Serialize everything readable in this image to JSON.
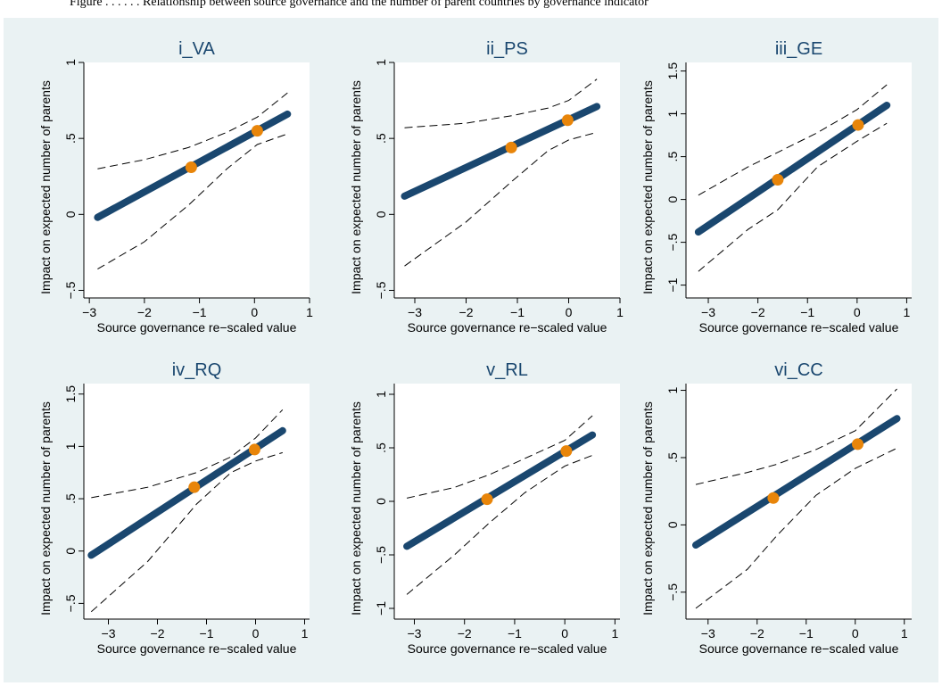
{
  "caption": "Figure  . . . . . .  Relationship between source governance and the number of parent countries by governance indicator",
  "colors": {
    "background": "#eaf2f3",
    "plot_area": "#ffffff",
    "fit_line": "#1a476f",
    "marker": "#e8850a",
    "ci_line": "#000000",
    "title": "#1a476f"
  },
  "chart_data": [
    {
      "type": "line",
      "title": "i_VA",
      "xlabel": "Source governance re−scaled value",
      "ylabel": "Impact on expected number of parents",
      "xlim": [
        -3.1,
        1.0
      ],
      "ylim": [
        -0.55,
        1.0
      ],
      "xticks": [
        "-3",
        "-2",
        "-1",
        "0",
        "1"
      ],
      "xtick_values": [
        -3,
        -2,
        -1,
        0,
        1
      ],
      "yticks": [
        "-.5",
        "0",
        ".5",
        "1"
      ],
      "ytick_values": [
        -0.5,
        0,
        0.5,
        1
      ],
      "series": [
        {
          "role": "fit",
          "x": [
            -2.85,
            0.6
          ],
          "y": [
            -0.02,
            0.66
          ]
        },
        {
          "role": "ci-upper",
          "x": [
            -2.85,
            -2.0,
            -1.2,
            -0.5,
            0.05,
            0.6
          ],
          "y": [
            0.3,
            0.36,
            0.44,
            0.54,
            0.64,
            0.8
          ]
        },
        {
          "role": "ci-lower",
          "x": [
            -2.85,
            -2.0,
            -1.2,
            -0.5,
            0.05,
            0.6
          ],
          "y": [
            -0.36,
            -0.18,
            0.06,
            0.3,
            0.46,
            0.53
          ]
        },
        {
          "role": "points",
          "x": [
            -1.15,
            0.05
          ],
          "y": [
            0.31,
            0.55
          ]
        }
      ]
    },
    {
      "type": "line",
      "title": "ii_PS",
      "xlabel": "Source governance re−scaled value",
      "ylabel": "Impact on expected number of parents",
      "xlim": [
        -3.4,
        1.0
      ],
      "ylim": [
        -0.55,
        1.0
      ],
      "xticks": [
        "-3",
        "-2",
        "-1",
        "0",
        "1"
      ],
      "xtick_values": [
        -3,
        -2,
        -1,
        0,
        1
      ],
      "yticks": [
        "-.5",
        "0",
        ".5",
        "1"
      ],
      "ytick_values": [
        -0.5,
        0,
        0.5,
        1
      ],
      "series": [
        {
          "role": "fit",
          "x": [
            -3.2,
            0.55
          ],
          "y": [
            0.12,
            0.71
          ]
        },
        {
          "role": "ci-upper",
          "x": [
            -3.2,
            -2.0,
            -1.1,
            -0.4,
            0.0,
            0.55
          ],
          "y": [
            0.57,
            0.6,
            0.65,
            0.7,
            0.75,
            0.89
          ]
        },
        {
          "role": "ci-lower",
          "x": [
            -3.2,
            -2.0,
            -1.1,
            -0.4,
            0.0,
            0.55
          ],
          "y": [
            -0.34,
            -0.05,
            0.22,
            0.42,
            0.49,
            0.54
          ]
        },
        {
          "role": "points",
          "x": [
            -1.12,
            -0.02
          ],
          "y": [
            0.44,
            0.62
          ]
        }
      ]
    },
    {
      "type": "line",
      "title": "iii_GE",
      "xlabel": "Source governance re−scaled value",
      "ylabel": "Impact on expected number of parents",
      "xlim": [
        -3.45,
        1.1
      ],
      "ylim": [
        -1.15,
        1.6
      ],
      "xticks": [
        "-3",
        "-2",
        "-1",
        "0",
        "1"
      ],
      "xtick_values": [
        -3,
        -2,
        -1,
        0,
        1
      ],
      "yticks": [
        "-1",
        "-.5",
        "0",
        ".5",
        "1",
        "1.5"
      ],
      "ytick_values": [
        -1,
        -0.5,
        0,
        0.5,
        1,
        1.5
      ],
      "series": [
        {
          "role": "fit",
          "x": [
            -3.2,
            0.6
          ],
          "y": [
            -0.38,
            1.1
          ]
        },
        {
          "role": "ci-upper",
          "x": [
            -3.2,
            -2.2,
            -1.6,
            -0.8,
            0.0,
            0.6
          ],
          "y": [
            0.05,
            0.38,
            0.55,
            0.78,
            1.05,
            1.34
          ]
        },
        {
          "role": "ci-lower",
          "x": [
            -3.2,
            -2.2,
            -1.6,
            -0.8,
            0.0,
            0.6
          ],
          "y": [
            -0.84,
            -0.35,
            -0.12,
            0.38,
            0.68,
            0.89
          ]
        },
        {
          "role": "points",
          "x": [
            -1.6,
            0.02
          ],
          "y": [
            0.23,
            0.87
          ]
        }
      ]
    },
    {
      "type": "line",
      "title": "iv_RQ",
      "xlabel": "Source governance re−scaled value",
      "ylabel": "Impact on expected number of parents",
      "xlim": [
        -3.5,
        1.1
      ],
      "ylim": [
        -0.65,
        1.6
      ],
      "xticks": [
        "-3",
        "-2",
        "-1",
        "0",
        "1"
      ],
      "xtick_values": [
        -3,
        -2,
        -1,
        0,
        1
      ],
      "yticks": [
        "-.5",
        "0",
        ".5",
        "1",
        "1.5"
      ],
      "ytick_values": [
        -0.5,
        0,
        0.5,
        1,
        1.5
      ],
      "series": [
        {
          "role": "fit",
          "x": [
            -3.35,
            0.55
          ],
          "y": [
            -0.04,
            1.15
          ]
        },
        {
          "role": "ci-upper",
          "x": [
            -3.35,
            -2.2,
            -1.2,
            -0.5,
            0.0,
            0.55
          ],
          "y": [
            0.51,
            0.61,
            0.75,
            0.9,
            1.08,
            1.35
          ]
        },
        {
          "role": "ci-lower",
          "x": [
            -3.35,
            -2.2,
            -1.2,
            -0.5,
            0.0,
            0.55
          ],
          "y": [
            -0.58,
            -0.1,
            0.45,
            0.75,
            0.86,
            0.94
          ]
        },
        {
          "role": "points",
          "x": [
            -1.25,
            -0.02
          ],
          "y": [
            0.61,
            0.97
          ]
        }
      ]
    },
    {
      "type": "line",
      "title": "v_RL",
      "xlabel": "Source governance re−scaled value",
      "ylabel": "Impact on expected number of parents",
      "xlim": [
        -3.4,
        1.1
      ],
      "ylim": [
        -1.1,
        1.1
      ],
      "xticks": [
        "-3",
        "-2",
        "-1",
        "0",
        "1"
      ],
      "xtick_values": [
        -3,
        -2,
        -1,
        0,
        1
      ],
      "yticks": [
        "-1",
        "-.5",
        "0",
        ".5",
        "1"
      ],
      "ytick_values": [
        -1,
        -0.5,
        0,
        0.5,
        1
      ],
      "series": [
        {
          "role": "fit",
          "x": [
            -3.15,
            0.55
          ],
          "y": [
            -0.42,
            0.62
          ]
        },
        {
          "role": "ci-upper",
          "x": [
            -3.15,
            -2.2,
            -1.5,
            -0.8,
            0.0,
            0.55
          ],
          "y": [
            0.03,
            0.13,
            0.25,
            0.4,
            0.57,
            0.8
          ]
        },
        {
          "role": "ci-lower",
          "x": [
            -3.15,
            -2.2,
            -1.5,
            -0.8,
            0.0,
            0.55
          ],
          "y": [
            -0.87,
            -0.5,
            -0.2,
            0.08,
            0.33,
            0.43
          ]
        },
        {
          "role": "points",
          "x": [
            -1.55,
            0.03
          ],
          "y": [
            0.02,
            0.47
          ]
        }
      ]
    },
    {
      "type": "line",
      "title": "vi_CC",
      "xlabel": "Source governance re−scaled value",
      "ylabel": "Impact on expected number of parents",
      "xlim": [
        -3.45,
        1.15
      ],
      "ylim": [
        -0.7,
        1.05
      ],
      "xticks": [
        "-3",
        "-2",
        "-1",
        "0",
        "1"
      ],
      "xtick_values": [
        -3,
        -2,
        -1,
        0,
        1
      ],
      "yticks": [
        "-.5",
        "0",
        ".5",
        "1"
      ],
      "ytick_values": [
        -0.5,
        0,
        0.5,
        1
      ],
      "series": [
        {
          "role": "fit",
          "x": [
            -3.25,
            0.85
          ],
          "y": [
            -0.15,
            0.79
          ]
        },
        {
          "role": "ci-upper",
          "x": [
            -3.25,
            -2.2,
            -1.6,
            -0.8,
            0.0,
            0.85
          ],
          "y": [
            0.3,
            0.39,
            0.45,
            0.56,
            0.7,
            1.01
          ]
        },
        {
          "role": "ci-lower",
          "x": [
            -3.25,
            -2.2,
            -1.6,
            -0.8,
            0.0,
            0.85
          ],
          "y": [
            -0.62,
            -0.33,
            -0.08,
            0.22,
            0.42,
            0.57
          ]
        },
        {
          "role": "points",
          "x": [
            -1.67,
            0.05
          ],
          "y": [
            0.2,
            0.6
          ]
        }
      ]
    }
  ]
}
